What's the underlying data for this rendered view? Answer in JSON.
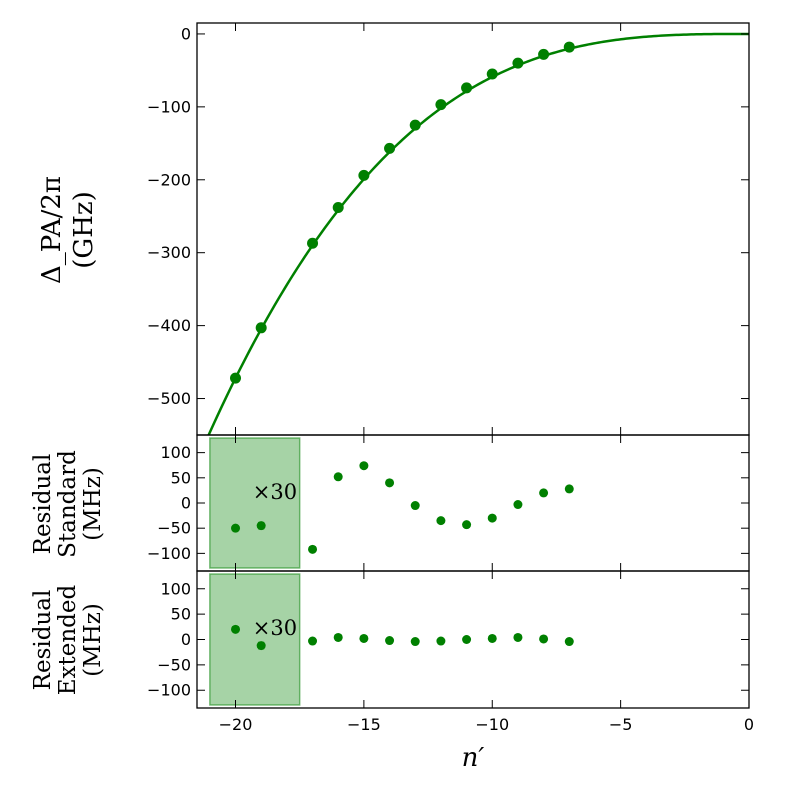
{
  "chart_data": [
    {
      "type": "scatter",
      "panel": "main",
      "ylabel": [
        "Δ_PA/2π",
        "(GHz)"
      ],
      "xlim": [
        -21.5,
        0
      ],
      "ylim": [
        -550,
        15
      ],
      "yticks": [
        0,
        -100,
        -200,
        -300,
        -400,
        -500
      ],
      "ytick_labels": [
        "0",
        "−100",
        "−200",
        "−300",
        "−400",
        "−500"
      ],
      "color": "#008000",
      "points": {
        "x": [
          -20,
          -19,
          -17,
          -16,
          -15,
          -14,
          -13,
          -12,
          -11,
          -10,
          -9,
          -8,
          -7
        ],
        "y": [
          -472,
          -403,
          -287,
          -238,
          -194,
          -157,
          -125,
          -97,
          -74,
          -55,
          -40,
          -28,
          -18
        ]
      },
      "fit_curve": "C·n′^3 (continuous fit)"
    },
    {
      "type": "scatter",
      "panel": "residual-standard",
      "ylabel": [
        "Residual",
        "Standard",
        "(MHz)"
      ],
      "ylim": [
        -135,
        135
      ],
      "yticks": [
        100,
        50,
        0,
        -50,
        -100
      ],
      "ytick_labels": [
        "100",
        "50",
        "0",
        "−50",
        "−100"
      ],
      "annotation": "×30",
      "shaded_region_x": [
        -21,
        -17.5
      ],
      "color": "#008000",
      "points": {
        "x": [
          -20,
          -19,
          -17,
          -16,
          -15,
          -14,
          -13,
          -12,
          -11,
          -10,
          -9,
          -8,
          -7
        ],
        "y": [
          -50,
          -45,
          -92,
          52,
          74,
          40,
          -5,
          -35,
          -43,
          -30,
          -3,
          20,
          28
        ],
        "yerr": [
          3,
          6,
          0,
          0,
          0,
          0,
          0,
          0,
          0,
          0,
          0,
          0,
          0
        ]
      }
    },
    {
      "type": "scatter",
      "panel": "residual-extended",
      "ylabel": [
        "Residual",
        "Extended",
        "(MHz)"
      ],
      "xlabel": "n′",
      "ylim": [
        -135,
        135
      ],
      "yticks": [
        100,
        50,
        0,
        -50,
        -100
      ],
      "ytick_labels": [
        "100",
        "50",
        "0",
        "−50",
        "−100"
      ],
      "xticks": [
        -20,
        -15,
        -10,
        -5,
        0
      ],
      "xtick_labels": [
        "−20",
        "−15",
        "−10",
        "−5",
        "0"
      ],
      "annotation": "×30",
      "shaded_region_x": [
        -21,
        -17.5
      ],
      "color": "#008000",
      "points": {
        "x": [
          -20,
          -19,
          -17,
          -16,
          -15,
          -14,
          -13,
          -12,
          -11,
          -10,
          -9,
          -8,
          -7
        ],
        "y": [
          20,
          -12,
          -3,
          4,
          2,
          -2,
          -4,
          -3,
          0,
          2,
          4,
          1,
          -4
        ],
        "yerr": [
          3,
          6,
          0,
          0,
          0,
          0,
          0,
          0,
          0,
          0,
          0,
          0,
          0
        ]
      }
    }
  ]
}
